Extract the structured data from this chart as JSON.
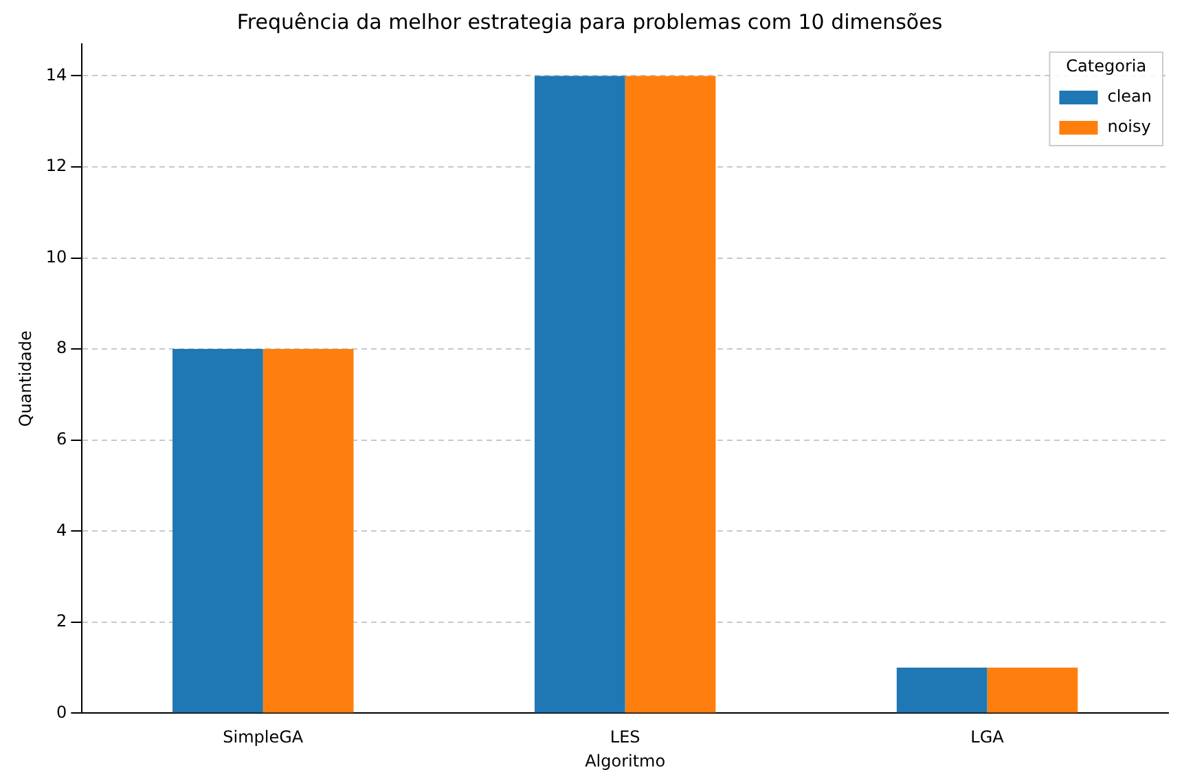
{
  "chart_data": {
    "type": "bar",
    "title": "Frequência da melhor estrategia para problemas com 10 dimensões",
    "xlabel": "Algoritmo",
    "ylabel": "Quantidade",
    "legend_title": "Categoria",
    "categories": [
      "SimpleGA",
      "LES",
      "LGA"
    ],
    "series": [
      {
        "name": "clean",
        "color": "#1f77b4",
        "values": [
          8,
          14,
          1
        ]
      },
      {
        "name": "noisy",
        "color": "#ff7f0e",
        "values": [
          8,
          14,
          1
        ]
      }
    ],
    "ylim": [
      0,
      14.7
    ],
    "yticks": [
      0,
      2,
      4,
      6,
      8,
      10,
      12,
      14
    ],
    "grid": "y",
    "legend": "top right"
  }
}
